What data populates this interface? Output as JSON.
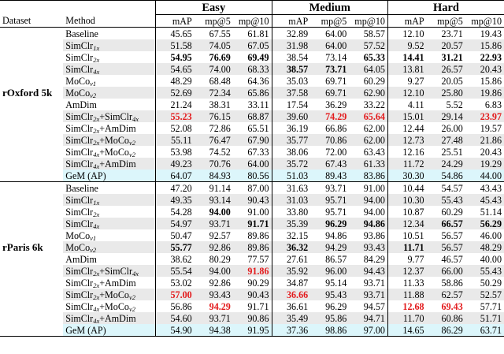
{
  "header": {
    "groups": [
      "Easy",
      "Medium",
      "Hard"
    ],
    "dataset": "Dataset",
    "method": "Method",
    "metrics": [
      "mAP",
      "mp@5",
      "mp@10"
    ]
  },
  "sections": [
    {
      "dataset": "rOxford 5k",
      "rows": [
        {
          "m": "Baseline",
          "s": "",
          "vals": [
            "45.65",
            "67.55",
            "61.81",
            "32.89",
            "64.00",
            "58.57",
            "12.10",
            "23.71",
            "19.43"
          ],
          "st": [
            "",
            "",
            "",
            "",
            "",
            "",
            "",
            "",
            ""
          ]
        },
        {
          "m": "SimClr",
          "s": "1x",
          "vals": [
            "51.58",
            "74.05",
            "67.05",
            "31.98",
            "64.00",
            "57.52",
            "9.52",
            "20.57",
            "15.86"
          ],
          "st": [
            "",
            "",
            "",
            "",
            "",
            "",
            "",
            "",
            ""
          ]
        },
        {
          "m": "SimClr",
          "s": "2x",
          "vals": [
            "54.95",
            "76.69",
            "69.49",
            "38.54",
            "73.14",
            "65.33",
            "14.41",
            "31.21",
            "22.93"
          ],
          "st": [
            "b",
            "b",
            "b",
            "",
            "",
            "b",
            "b",
            "b",
            "b"
          ]
        },
        {
          "m": "SimClr",
          "s": "4x",
          "vals": [
            "54.65",
            "74.00",
            "68.33",
            "38.57",
            "73.71",
            "64.05",
            "13.81",
            "26.57",
            "20.43"
          ],
          "st": [
            "",
            "",
            "",
            "b",
            "b",
            "",
            "",
            "",
            ""
          ]
        },
        {
          "m": "MoCo",
          "s": "v1",
          "vals": [
            "48.29",
            "68.48",
            "64.36",
            "35.03",
            "69.71",
            "60.29",
            "9.27",
            "20.05",
            "15.86"
          ],
          "st": [
            "",
            "",
            "",
            "",
            "",
            "",
            "",
            "",
            ""
          ]
        },
        {
          "m": "MoCo",
          "s": "v2",
          "vals": [
            "52.69",
            "72.34",
            "65.86",
            "37.58",
            "69.71",
            "62.90",
            "12.10",
            "25.80",
            "19.86"
          ],
          "st": [
            "",
            "",
            "",
            "",
            "",
            "",
            "",
            "",
            ""
          ]
        },
        {
          "m": "AmDim",
          "s": "",
          "vals": [
            "21.24",
            "38.31",
            "33.11",
            "17.54",
            "36.29",
            "33.22",
            "4.11",
            "5.52",
            "6.83"
          ],
          "st": [
            "",
            "",
            "",
            "",
            "",
            "",
            "",
            "",
            ""
          ]
        },
        {
          "m": "SimClr",
          "s": "2x",
          "m2": "+SimClr",
          "s2": "4x",
          "vals": [
            "55.23",
            "76.15",
            "68.87",
            "39.60",
            "74.29",
            "65.64",
            "15.01",
            "29.14",
            "23.97"
          ],
          "st": [
            "r",
            "",
            "",
            "",
            "r",
            "r",
            "",
            "",
            "r"
          ]
        },
        {
          "m": "SimClr",
          "s": "2x",
          "m2": "+AmDim",
          "s2": "",
          "vals": [
            "52.08",
            "72.86",
            "65.51",
            "36.19",
            "66.86",
            "62.00",
            "12.44",
            "26.00",
            "19.57"
          ],
          "st": [
            "",
            "",
            "",
            "",
            "",
            "",
            "",
            "",
            ""
          ]
        },
        {
          "m": "SimClr",
          "s": "2x",
          "m2": "+MoCo",
          "s2": "v2",
          "vals": [
            "55.11",
            "76.47",
            "67.90",
            "35.77",
            "70.86",
            "62.00",
            "12.73",
            "27.48",
            "21.86"
          ],
          "st": [
            "",
            "",
            "",
            "",
            "",
            "",
            "",
            "",
            ""
          ]
        },
        {
          "m": "SimClr",
          "s": "4x",
          "m2": "+MoCo",
          "s2": "v2",
          "vals": [
            "53.98",
            "74.52",
            "67.33",
            "38.06",
            "72.00",
            "63.43",
            "12.16",
            "25.51",
            "20.43"
          ],
          "st": [
            "",
            "",
            "",
            "",
            "",
            "",
            "",
            "",
            ""
          ]
        },
        {
          "m": "SimClr",
          "s": "4x",
          "m2": "+AmDim",
          "s2": "",
          "vals": [
            "49.23",
            "70.76",
            "64.00",
            "35.72",
            "67.43",
            "61.33",
            "11.72",
            "24.29",
            "19.29"
          ],
          "st": [
            "",
            "",
            "",
            "",
            "",
            "",
            "",
            "",
            ""
          ]
        },
        {
          "m": "GeM (AP)",
          "s": "",
          "vals": [
            "64.07",
            "84.93",
            "80.56",
            "51.03",
            "89.43",
            "83.86",
            "30.30",
            "54.86",
            "44.00"
          ],
          "st": [
            "",
            "",
            "",
            "",
            "",
            "",
            "",
            "",
            ""
          ],
          "gem": true
        }
      ]
    },
    {
      "dataset": "rParis 6k",
      "rows": [
        {
          "m": "Baseline",
          "s": "",
          "vals": [
            "47.20",
            "91.14",
            "87.00",
            "31.63",
            "93.71",
            "91.00",
            "10.44",
            "54.57",
            "43.43"
          ],
          "st": [
            "",
            "",
            "",
            "",
            "",
            "",
            "",
            "",
            ""
          ]
        },
        {
          "m": "SimClr",
          "s": "1x",
          "vals": [
            "49.35",
            "93.14",
            "90.43",
            "31.03",
            "95.71",
            "94.00",
            "10.30",
            "55.43",
            "45.43"
          ],
          "st": [
            "",
            "",
            "",
            "",
            "",
            "",
            "",
            "",
            ""
          ]
        },
        {
          "m": "SimClr",
          "s": "2x",
          "vals": [
            "54.28",
            "94.00",
            "91.00",
            "33.80",
            "95.71",
            "94.00",
            "10.87",
            "60.29",
            "51.14"
          ],
          "st": [
            "",
            "b",
            "",
            "",
            "",
            "",
            "",
            "",
            ""
          ]
        },
        {
          "m": "SimClr",
          "s": "4x",
          "vals": [
            "54.97",
            "93.71",
            "91.71",
            "35.39",
            "96.29",
            "94.86",
            "12.34",
            "66.57",
            "56.29"
          ],
          "st": [
            "",
            "",
            "b",
            "",
            "b",
            "b",
            "",
            "b",
            "b"
          ]
        },
        {
          "m": "MoCo",
          "s": "v1",
          "vals": [
            "50.47",
            "92.57",
            "89.86",
            "32.15",
            "94.86",
            "93.86",
            "10.51",
            "56.57",
            "46.00"
          ],
          "st": [
            "",
            "",
            "",
            "",
            "",
            "",
            "",
            "",
            ""
          ]
        },
        {
          "m": "MoCo",
          "s": "v2",
          "vals": [
            "55.77",
            "92.86",
            "89.86",
            "36.32",
            "94.29",
            "93.43",
            "11.71",
            "56.57",
            "48.29"
          ],
          "st": [
            "b",
            "",
            "",
            "b",
            "",
            "",
            "b",
            "",
            ""
          ]
        },
        {
          "m": "AmDim",
          "s": "",
          "vals": [
            "38.62",
            "80.29",
            "77.57",
            "27.61",
            "86.57",
            "84.29",
            "9.77",
            "46.57",
            "40.00"
          ],
          "st": [
            "",
            "",
            "",
            "",
            "",
            "",
            "",
            "",
            ""
          ]
        },
        {
          "m": "SimClr",
          "s": "2x",
          "m2": "+SimClr",
          "s2": "4x",
          "vals": [
            "55.54",
            "94.00",
            "91.86",
            "35.92",
            "96.00",
            "94.43",
            "12.37",
            "66.00",
            "55.43"
          ],
          "st": [
            "",
            "",
            "r",
            "",
            "",
            "",
            "",
            "",
            ""
          ]
        },
        {
          "m": "SimClr",
          "s": "2x",
          "m2": "+AmDim",
          "s2": "",
          "vals": [
            "53.02",
            "92.86",
            "90.29",
            "34.87",
            "95.14",
            "93.71",
            "11.33",
            "58.86",
            "50.29"
          ],
          "st": [
            "",
            "",
            "",
            "",
            "",
            "",
            "",
            "",
            ""
          ]
        },
        {
          "m": "SimClr",
          "s": "2x",
          "m2": "+MoCo",
          "s2": "v2",
          "vals": [
            "57.00",
            "93.43",
            "90.43",
            "36.66",
            "95.43",
            "93.71",
            "11.88",
            "62.57",
            "52.57"
          ],
          "st": [
            "r",
            "",
            "",
            "r",
            "",
            "",
            "",
            "",
            ""
          ]
        },
        {
          "m": "SimClr",
          "s": "4x",
          "m2": "+MoCo",
          "s2": "v2",
          "vals": [
            "56.86",
            "94.29",
            "91.71",
            "36.61",
            "96.29",
            "94.57",
            "12.68",
            "69.43",
            "57.71"
          ],
          "st": [
            "",
            "r",
            "",
            "",
            "",
            "",
            "r",
            "r",
            ""
          ]
        },
        {
          "m": "SimClr",
          "s": "4x",
          "m2": "+AmDim",
          "s2": "",
          "vals": [
            "54.60",
            "93.71",
            "90.86",
            "35.49",
            "95.86",
            "94.71",
            "11.70",
            "60.86",
            "51.71"
          ],
          "st": [
            "",
            "",
            "",
            "",
            "",
            "",
            "",
            "",
            ""
          ]
        },
        {
          "m": "GeM (AP)",
          "s": "",
          "vals": [
            "54.90",
            "94.38",
            "91.95",
            "37.36",
            "98.86",
            "97.00",
            "14.65",
            "86.29",
            "63.71"
          ],
          "st": [
            "",
            "",
            "",
            "",
            "",
            "",
            "",
            "",
            ""
          ],
          "gem": true
        }
      ]
    }
  ],
  "colors": {
    "highlight_red": "#e31a1c",
    "row_alt": "#e9e9e9",
    "gem_row": "#dcf6fb"
  }
}
